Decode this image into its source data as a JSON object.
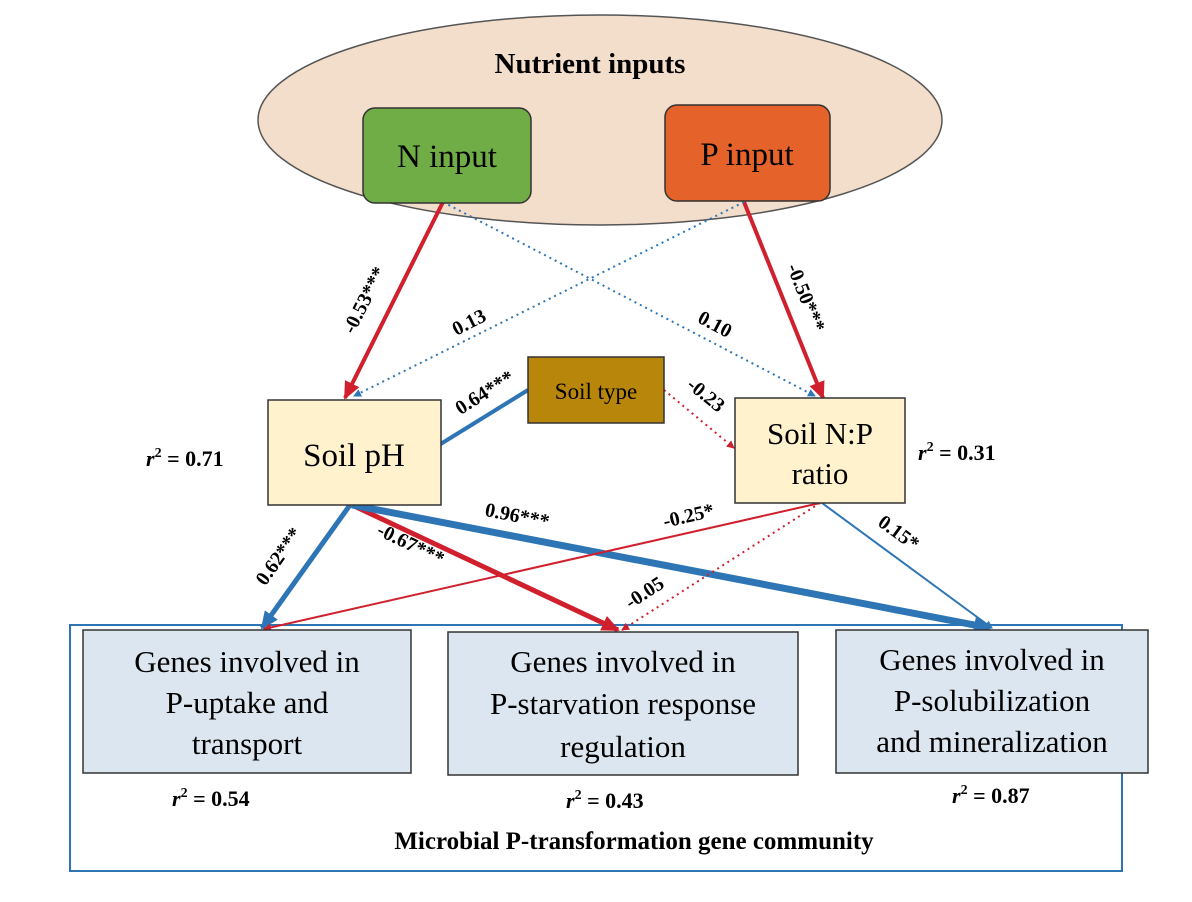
{
  "diagram": {
    "nutrient_group": {
      "title": "Nutrient inputs"
    },
    "nodes": {
      "n_input": {
        "label": "N input"
      },
      "p_input": {
        "label": "P input"
      },
      "soil_type": {
        "label": "Soil type"
      },
      "soil_ph": {
        "label": "Soil pH",
        "r2_value": "0.71"
      },
      "soil_np": {
        "label_line1": "Soil N:P",
        "label_line2": "ratio",
        "r2_value": "0.31"
      },
      "genes_uptake": {
        "line1": "Genes involved in",
        "line2": "P-uptake and",
        "line3": "transport",
        "r2_value": "0.54"
      },
      "genes_starvation": {
        "line1": "Genes involved in",
        "line2": "P-starvation response",
        "line3": "regulation",
        "r2_value": "0.43"
      },
      "genes_solubilization": {
        "line1": "Genes involved in",
        "line2": "P-solubilization",
        "line3": "and mineralization",
        "r2_value": "0.87"
      }
    },
    "r2_prefix": "r",
    "r2_sup": "2",
    "r2_eq": " = ",
    "community": {
      "title": "Microbial P-transformation gene community"
    },
    "paths": {
      "n_to_ph": "-0.53***",
      "p_to_ph": "0.13",
      "n_to_np": "0.10",
      "p_to_np": "-0.50***",
      "soiltype_to_ph": "0.64***",
      "soiltype_to_np": "-0.23",
      "ph_to_uptake": "0.62***",
      "ph_to_starvation": "-0.67***",
      "ph_to_solubilization": "0.96***",
      "np_to_uptake": "-0.25*",
      "np_to_starvation": "-0.05",
      "np_to_solubilization": "0.15*"
    },
    "colors": {
      "ellipse_fill": "#F3DDCB",
      "n_input_fill": "#70AD47",
      "p_input_fill": "#E5632A",
      "soil_type_fill": "#B8860B",
      "soil_box_fill": "#FFF2CC",
      "gene_box_fill": "#DCE6F0",
      "negative": "#D0202E",
      "positive": "#2E75B6",
      "community_border": "#2E75B6"
    }
  }
}
